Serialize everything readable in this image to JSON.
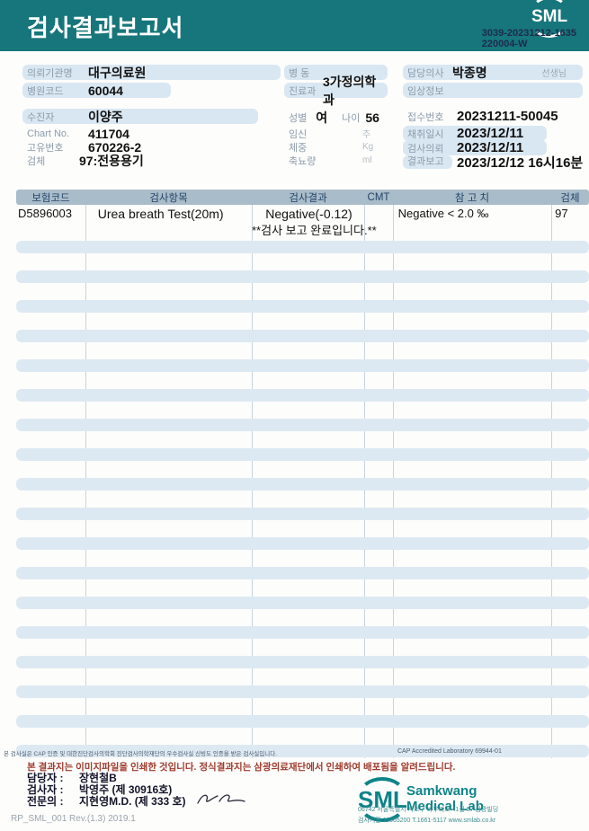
{
  "header": {
    "title": "검사결과보고서",
    "logo_text": "SML",
    "doc_number_line1": "3039-20231212-1635",
    "doc_number_line2": "220004-W"
  },
  "info": {
    "left": {
      "org_label": "의뢰기관명",
      "org_value": "대구의료원",
      "hospital_code_label": "병원코드",
      "hospital_code_value": "60044",
      "patient_label": "수진자",
      "patient_value": "이양주",
      "chart_label": "Chart No.",
      "chart_value": "411704",
      "unique_label": "고유번호",
      "unique_value": "670226-2",
      "specimen_label": "검체",
      "specimen_value": "97:전용용기"
    },
    "middle": {
      "ward_label": "병  동",
      "ward_value": "",
      "dept_label": "진료과",
      "dept_value": "3가정의학과",
      "sex_label": "성별",
      "sex_value": "여",
      "age_label": "나이",
      "age_value": "56",
      "pregnancy_label": "임신",
      "pregnancy_unit": "주",
      "weight_label": "체중",
      "weight_unit": "Kg",
      "urine_label": "축뇨량",
      "urine_unit": "ml"
    },
    "right": {
      "doctor_label": "담당의사",
      "doctor_value": "박종명",
      "doctor_suffix": "선생님",
      "clinical_label": "임상정보",
      "clinical_value": "",
      "receipt_label": "접수번호",
      "receipt_value": "20231211-50045",
      "collect_label": "채취일시",
      "collect_value": "2023/12/11",
      "request_label": "검사의뢰",
      "request_value": "2023/12/11",
      "report_label": "결과보고",
      "report_value": "2023/12/12 16시16분"
    }
  },
  "table": {
    "headers": {
      "insurance_code": "보험코드",
      "test_item": "검사항목",
      "test_result": "검사결과",
      "cmt": "CMT",
      "reference": "참 고 치",
      "specimen": "검체"
    },
    "rows": [
      {
        "code": "D5896003",
        "item": "Urea breath Test(20m)",
        "result": "Negative(-0.12)",
        "cmt": "",
        "reference": "Negative < 2.0 ‰",
        "specimen": "97"
      },
      {
        "code": "",
        "item": "",
        "result": "**검사  보고  완료입니다.**",
        "cmt": "",
        "reference": "",
        "specimen": ""
      }
    ],
    "empty_stripe_count": 18,
    "accreditation_note": "본 검사실은 CAP 인증 및 대한진단검사의학회 진단검사의학재단의 우수검사실 신빙도 인증을 받은 검사실입니다.",
    "cap_note": "CAP Accredited Laboratory 69944-01"
  },
  "footer": {
    "notice": "본 결과지는 이미지파일을 인쇄한 것입니다. 정식결과지는 삼광의료재단에서 인쇄하여 배포됨을 알려드립니다.",
    "staff_label": "담당자 :",
    "staff_value": "장현철B",
    "examiner_label": "검사자 :",
    "examiner_value": "박영주 (제 30916호)",
    "specialist_label": "전문의 :",
    "specialist_value": "지현영M.D. (제 333 호)",
    "logo_text": "SML",
    "lab_name_line1": "Samkwang",
    "lab_name_line2": "Medical Lab",
    "address": "06742 서울특별시 서초구 바우뫼로 41길 57 삼광빌딩",
    "contact": "검사기관 11365200 T.1661-5117 www.smlab.co.kr",
    "form_code": "RP_SML_001 Rev.(1.3) 2019.1"
  },
  "colors": {
    "header_teal": "#17767b",
    "field_bar_blue": "#d9e7f2",
    "table_header_bg": "#a9bcc9",
    "stripe_blue": "#dde9f2",
    "notice_red": "#a03a2d",
    "logo_teal": "#0d8489"
  }
}
